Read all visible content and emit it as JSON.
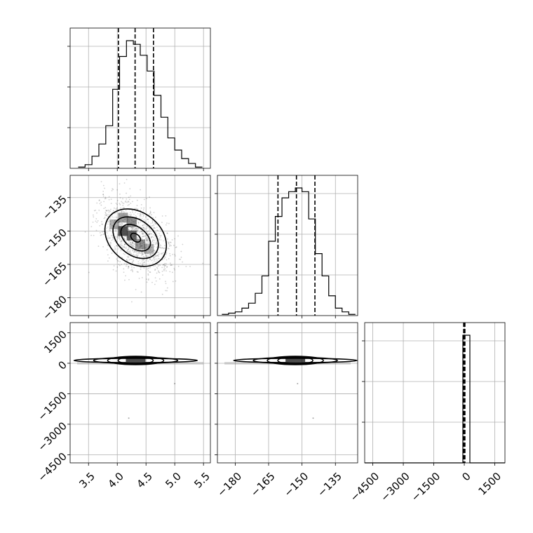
{
  "chart_data": {
    "type": "corner",
    "grid": true,
    "quantile_lines": "dashed",
    "parameters": [
      {
        "range": [
          3.18,
          5.62
        ],
        "ticks": [
          3.5,
          4.0,
          4.5,
          5.0,
          5.5
        ],
        "tick_labels": [
          "3.5",
          "4.0",
          "4.5",
          "5.0",
          "5.5"
        ],
        "quantiles": [
          4.02,
          4.31,
          4.63
        ]
      },
      {
        "range": [
          -188,
          -125
        ],
        "ticks": [
          -180,
          -165,
          -150,
          -135
        ],
        "tick_labels": [
          "−180",
          "−165",
          "−150",
          "−135"
        ],
        "quantiles": [
          -160.8,
          -152.5,
          -144.2
        ]
      },
      {
        "range": [
          -4900,
          2000
        ],
        "ticks": [
          -4500,
          -3000,
          -1500,
          0,
          1500
        ],
        "tick_labels": [
          "−4500",
          "−3000",
          "−1500",
          "0",
          "1500"
        ],
        "quantiles": [
          -30,
          0,
          30
        ]
      }
    ],
    "histograms": [
      {
        "param": 0,
        "bin_edges": [
          3.32,
          3.44,
          3.56,
          3.68,
          3.8,
          3.92,
          4.04,
          4.16,
          4.28,
          4.4,
          4.52,
          4.64,
          4.76,
          4.88,
          5.0,
          5.12,
          5.24,
          5.36,
          5.48
        ],
        "counts": [
          1,
          3,
          10,
          20,
          35,
          65,
          92,
          105,
          102,
          93,
          80,
          60,
          42,
          25,
          15,
          8,
          4,
          1
        ]
      },
      {
        "param": 1,
        "bin_edges": [
          -186,
          -183,
          -180,
          -177,
          -174,
          -171,
          -168,
          -165,
          -162,
          -159,
          -156,
          -153,
          -150,
          -147,
          -144,
          -141,
          -138,
          -135,
          -132,
          -129,
          -126
        ],
        "counts": [
          1,
          2,
          3,
          6,
          10,
          18,
          32,
          60,
          80,
          95,
          100,
          103,
          100,
          78,
          50,
          32,
          16,
          6,
          3,
          1
        ]
      },
      {
        "param": 2,
        "bin_edges": [
          -4900,
          -4555,
          -4210,
          -3865,
          -3520,
          -3175,
          -2830,
          -2485,
          -2140,
          -1795,
          -1450,
          -1105,
          -760,
          -415,
          -70,
          275,
          620,
          965,
          1310,
          1655,
          2000
        ],
        "counts": [
          0,
          0,
          0,
          0,
          0,
          0,
          0,
          0,
          0,
          0,
          0,
          0,
          0,
          0,
          100,
          0,
          0,
          0,
          0,
          0
        ]
      }
    ],
    "joint_2d": [
      {
        "x_param": 0,
        "y_param": 1,
        "center": [
          4.32,
          -153
        ],
        "sigma": [
          0.3,
          8.2
        ],
        "correlation": -0.45
      },
      {
        "x_param": 0,
        "y_param": 2,
        "center": [
          4.32,
          0
        ],
        "note": "narrow horizontal band at 0"
      },
      {
        "x_param": 1,
        "y_param": 2,
        "center": [
          -153,
          0
        ],
        "note": "narrow horizontal band at 0"
      }
    ],
    "outlier_points": [
      {
        "x_param": 0,
        "y_param": 2,
        "x": 4.2,
        "y": -2700
      },
      {
        "x_param": 0,
        "y_param": 2,
        "x": 5.0,
        "y": -1000
      },
      {
        "x_param": 1,
        "y_param": 2,
        "x": -145,
        "y": -2700
      },
      {
        "x_param": 1,
        "y_param": 2,
        "x": -152,
        "y": -1000
      }
    ]
  }
}
